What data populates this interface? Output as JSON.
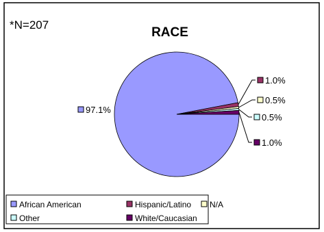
{
  "chart_data": {
    "type": "pie",
    "title": "RACE",
    "note": "*N=207",
    "categories": [
      "African American",
      "Hispanic/Latino",
      "N/A",
      "Other",
      "White/Caucasian"
    ],
    "values": [
      97.1,
      1.0,
      0.5,
      0.5,
      1.0
    ],
    "value_labels": [
      "97.1%",
      "1.0%",
      "0.5%",
      "0.5%",
      "1.0%"
    ],
    "colors": [
      "#9999ff",
      "#993366",
      "#ffffcc",
      "#ccffff",
      "#660066"
    ],
    "legend_position": "bottom"
  }
}
